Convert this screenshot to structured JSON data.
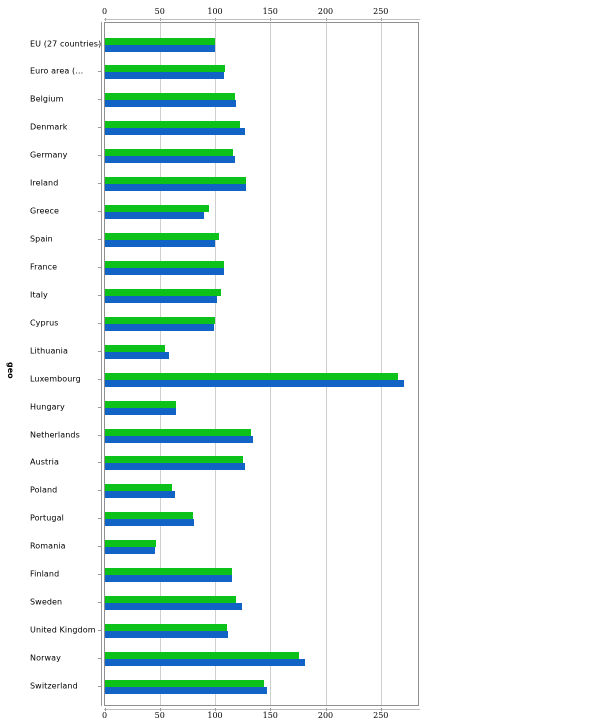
{
  "chart_data": {
    "type": "bar",
    "orientation": "horizontal",
    "title": "",
    "xlabel": "",
    "ylabel": "geo",
    "xlim": [
      0,
      285
    ],
    "xticks": [
      0,
      50,
      100,
      150,
      200,
      250
    ],
    "xticks_top_and_bottom": true,
    "grid": true,
    "legend": null,
    "colors": {
      "series_1": "#0cc21a",
      "series_2": "#1163c6"
    },
    "categories": [
      "EU (27 countries)",
      "Euro area (...",
      "Belgium",
      "Denmark",
      "Germany",
      "Ireland",
      "Greece",
      "Spain",
      "France",
      "Italy",
      "Cyprus",
      "Lithuania",
      "Luxembourg",
      "Hungary",
      "Netherlands",
      "Austria",
      "Poland",
      "Portugal",
      "Romania",
      "Finland",
      "Sweden",
      "United Kingdom",
      "Norway",
      "Switzerland"
    ],
    "series": [
      {
        "name": "series_1",
        "color": "#0cc21a",
        "values": [
          100,
          109,
          118,
          123,
          116,
          128,
          95,
          104,
          108,
          105,
          100,
          55,
          266,
          65,
          133,
          125,
          61,
          80,
          47,
          115,
          119,
          111,
          176,
          144
        ]
      },
      {
        "name": "series_2",
        "color": "#1163c6",
        "values": [
          100,
          108,
          119,
          127,
          118,
          128,
          90,
          100,
          108,
          102,
          99,
          58,
          271,
          65,
          134,
          127,
          64,
          81,
          46,
          115,
          124,
          112,
          181,
          147
        ]
      }
    ]
  },
  "axis": {
    "ylabel": "geo",
    "ticks": [
      "0",
      "50",
      "100",
      "150",
      "200",
      "250"
    ]
  }
}
